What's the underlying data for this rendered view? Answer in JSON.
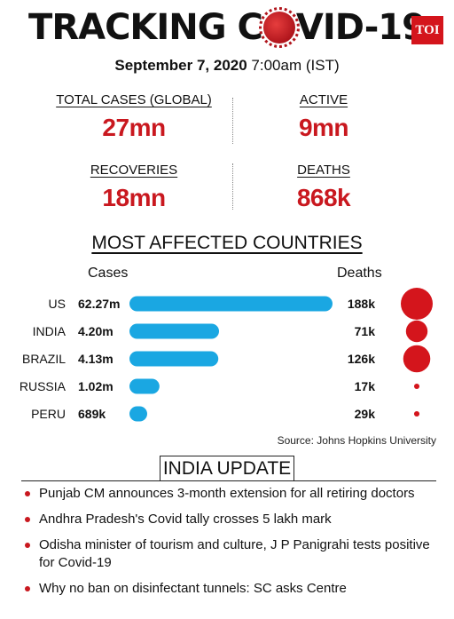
{
  "header": {
    "title_left": "TRACKING C",
    "title_right": "VID-19",
    "logo": "TOI",
    "date": "September 7, 2020",
    "time": "7:00am (IST)"
  },
  "stats": {
    "total_label": "TOTAL CASES (GLOBAL)",
    "total_value": "27mn",
    "active_label": "ACTIVE",
    "active_value": "9mn",
    "recoveries_label": "RECOVERIES",
    "recoveries_value": "18mn",
    "deaths_label": "DEATHS",
    "deaths_value": "868k"
  },
  "chart_data": {
    "type": "bar",
    "title": "MOST AFFECTED COUNTRIES",
    "cases_header": "Cases",
    "deaths_header": "Deaths",
    "categories": [
      "US",
      "INDIA",
      "BRAZIL",
      "RUSSIA",
      "PERU"
    ],
    "series": [
      {
        "name": "Cases",
        "values": [
          62.27,
          4.2,
          4.13,
          1.02,
          0.689
        ],
        "labels": [
          "62.27m",
          "4.20m",
          "4.13m",
          "1.02m",
          "689k"
        ]
      },
      {
        "name": "Deaths",
        "values": [
          188,
          71,
          126,
          17,
          29
        ],
        "labels": [
          "188k",
          "71k",
          "126k",
          "17k",
          "29k"
        ]
      }
    ],
    "colors": {
      "bar": "#1aa7e2",
      "bubble": "#d4151c"
    },
    "source": "Source: Johns Hopkins University"
  },
  "india_update": {
    "title": "INDIA UPDATE",
    "items": [
      "Punjab CM announces 3-month extension for all retiring doctors",
      "Andhra Pradesh's Covid tally crosses 5 lakh mark",
      "Odisha minister of tourism and culture, J P Panigrahi tests positive for Covid-19",
      "Why no ban on disinfectant tunnels: SC asks Centre"
    ]
  }
}
